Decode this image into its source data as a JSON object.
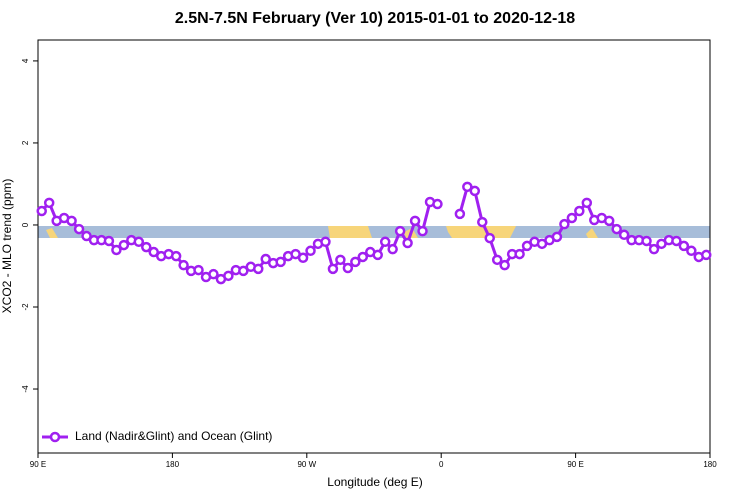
{
  "chart_data": {
    "type": "line",
    "title": "2.5N-7.5N February (Ver 10)   2015-01-01 to 2020-12-18",
    "x_label": "Longitude (deg E)",
    "y_label": "XCO2 - MLO trend (ppm)",
    "xlim": [
      90,
      540
    ],
    "ylim": [
      -5.56,
      4.51
    ],
    "xticks": [
      {
        "value": 90,
        "label": "90 E"
      },
      {
        "value": 180,
        "label": "180"
      },
      {
        "value": 270,
        "label": "90 W"
      },
      {
        "value": 360,
        "label": "0"
      },
      {
        "value": 450,
        "label": "90 E"
      },
      {
        "value": 540,
        "label": "180"
      }
    ],
    "yticks": [
      -4,
      -2,
      0,
      2,
      4
    ],
    "legend": "bottom-left",
    "x": [
      92.5,
      97.5,
      102.5,
      107.5,
      112.5,
      117.5,
      122.5,
      127.5,
      132.5,
      137.5,
      142.5,
      147.5,
      152.5,
      157.5,
      162.5,
      167.5,
      172.5,
      177.5,
      182.5,
      187.5,
      192.5,
      197.5,
      202.5,
      207.5,
      212.5,
      217.5,
      222.5,
      227.5,
      232.5,
      237.5,
      242.5,
      247.5,
      252.5,
      257.5,
      262.5,
      267.5,
      272.5,
      277.5,
      282.5,
      287.5,
      292.5,
      297.5,
      302.5,
      307.5,
      312.5,
      317.5,
      322.5,
      327.5,
      332.5,
      337.5,
      342.5,
      347.5,
      352.5,
      357.5,
      362.5,
      367.5,
      372.5,
      377.5,
      382.5,
      387.5,
      392.5,
      397.5,
      402.5,
      407.5,
      412.5,
      417.5,
      422.5,
      427.5,
      432.5,
      437.5,
      442.5,
      447.5,
      452.5,
      457.5,
      462.5,
      467.5,
      472.5,
      477.5,
      482.5,
      487.5,
      492.5,
      497.5,
      502.5,
      507.5,
      512.5,
      517.5,
      522.5,
      527.5,
      532.5,
      537.5
    ],
    "series": [
      {
        "name": "Land (Nadir&Glint) and Ocean (Glint)",
        "color": "#a020f0",
        "values": [
          0.34,
          0.54,
          0.1,
          0.17,
          0.1,
          -0.1,
          -0.27,
          -0.37,
          -0.37,
          -0.39,
          -0.61,
          -0.49,
          -0.37,
          -0.41,
          -0.54,
          -0.66,
          -0.76,
          -0.71,
          -0.76,
          -0.98,
          -1.12,
          -1.1,
          -1.27,
          -1.2,
          -1.32,
          -1.24,
          -1.1,
          -1.12,
          -1.02,
          -1.07,
          -0.83,
          -0.93,
          -0.9,
          -0.76,
          -0.71,
          -0.8,
          -0.63,
          -0.46,
          -0.41,
          -1.07,
          -0.85,
          -1.05,
          -0.9,
          -0.78,
          -0.66,
          -0.73,
          -0.41,
          -0.59,
          -0.15,
          -0.44,
          0.1,
          -0.15,
          0.56,
          0.51,
          null,
          null,
          0.27,
          0.93,
          0.83,
          0.07,
          -0.32,
          -0.85,
          -0.98,
          -0.71,
          -0.71,
          -0.51,
          -0.41,
          -0.46,
          -0.37,
          -0.29,
          0.02,
          0.17,
          0.34,
          0.54,
          0.12,
          0.17,
          0.1,
          -0.1,
          -0.24,
          -0.37,
          -0.37,
          -0.39,
          -0.59,
          -0.46,
          -0.37,
          -0.39,
          -0.51,
          -0.63,
          -0.78,
          -0.73
        ]
      }
    ]
  }
}
